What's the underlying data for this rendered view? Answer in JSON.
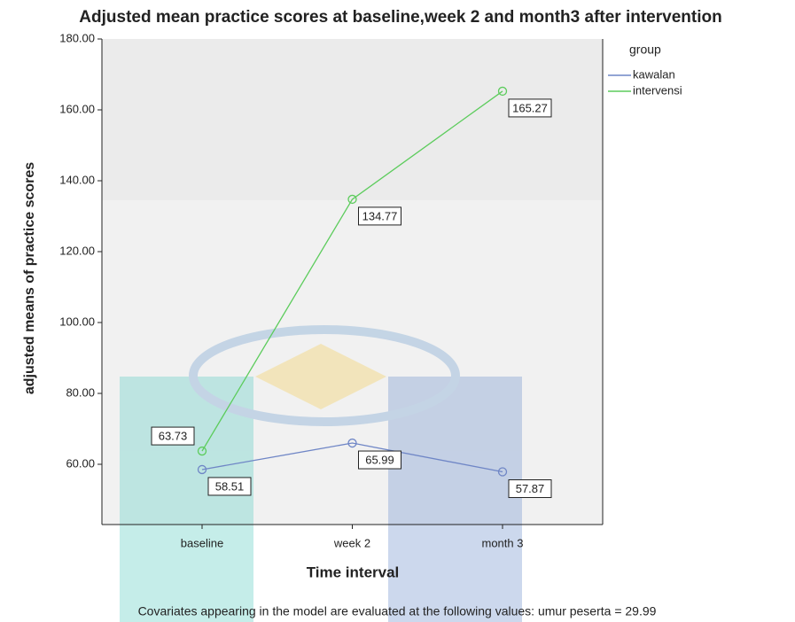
{
  "chart_data": {
    "type": "line",
    "title": "Adjusted mean practice scores at baseline,week 2 and month3 after intervention",
    "x_label": "Time interval",
    "y_label": "adjusted means of practice scores",
    "note": "Covariates appearing in the model are evaluated at the following values: umur peserta = 29.99",
    "legend_title": "group",
    "legend_position": "right",
    "grid": false,
    "categories": [
      "baseline",
      "week 2",
      "month 3"
    ],
    "series": [
      {
        "name": "kawalan",
        "color": "#6f86c6",
        "values": [
          58.51,
          65.99,
          57.87
        ]
      },
      {
        "name": "intervensi",
        "color": "#5ccc5c",
        "values": [
          63.73,
          134.77,
          165.27
        ]
      }
    ],
    "ylim": [
      43,
      180
    ],
    "yticks": [
      {
        "value": 60,
        "label": "60.00"
      },
      {
        "value": 80,
        "label": "80.00"
      },
      {
        "value": 100,
        "label": "100.00"
      },
      {
        "value": 120,
        "label": "120.00"
      },
      {
        "value": 140,
        "label": "140.00"
      },
      {
        "value": 160,
        "label": "160.00"
      },
      {
        "value": 180,
        "label": "180.00"
      }
    ]
  }
}
